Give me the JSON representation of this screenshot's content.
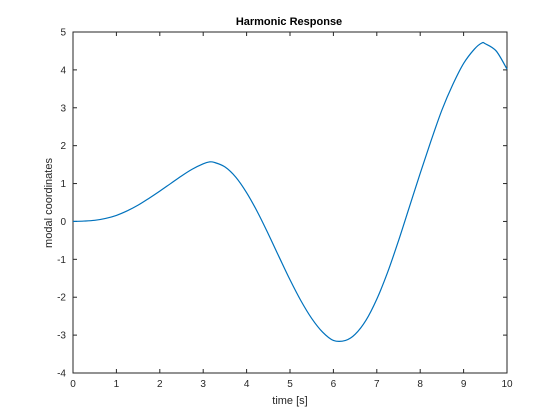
{
  "chart_data": {
    "type": "line",
    "title": "Harmonic Response",
    "xlabel": "time [s]",
    "ylabel": "modal coordinates",
    "xlim": [
      0,
      10
    ],
    "ylim": [
      -4,
      5
    ],
    "xticks": [
      "0",
      "1",
      "2",
      "3",
      "4",
      "5",
      "6",
      "7",
      "8",
      "9",
      "10"
    ],
    "yticks": [
      "-4",
      "-3",
      "-2",
      "-1",
      "0",
      "1",
      "2",
      "3",
      "4",
      "5"
    ],
    "grid": false,
    "series": [
      {
        "color": "#0072bd",
        "x": [
          0,
          0.25,
          0.5,
          0.75,
          1,
          1.25,
          1.5,
          1.75,
          2,
          2.25,
          2.5,
          2.75,
          3,
          3.14,
          3.25,
          3.5,
          3.75,
          4,
          4.25,
          4.5,
          4.75,
          5,
          5.25,
          5.5,
          5.75,
          6,
          6.28,
          6.5,
          6.75,
          7,
          7.25,
          7.5,
          7.75,
          8,
          8.25,
          8.5,
          8.75,
          9,
          9.25,
          9.42,
          9.5,
          9.75,
          10
        ],
        "y": [
          0,
          0.01,
          0.03,
          0.08,
          0.16,
          0.28,
          0.43,
          0.61,
          0.8,
          1.0,
          1.2,
          1.38,
          1.52,
          1.57,
          1.56,
          1.44,
          1.17,
          0.76,
          0.25,
          -0.33,
          -0.94,
          -1.54,
          -2.09,
          -2.56,
          -2.92,
          -3.14,
          -3.14,
          -2.98,
          -2.61,
          -2.05,
          -1.34,
          -0.51,
          0.38,
          1.27,
          2.13,
          2.94,
          3.61,
          4.17,
          4.55,
          4.71,
          4.69,
          4.5,
          4.02
        ]
      }
    ]
  }
}
